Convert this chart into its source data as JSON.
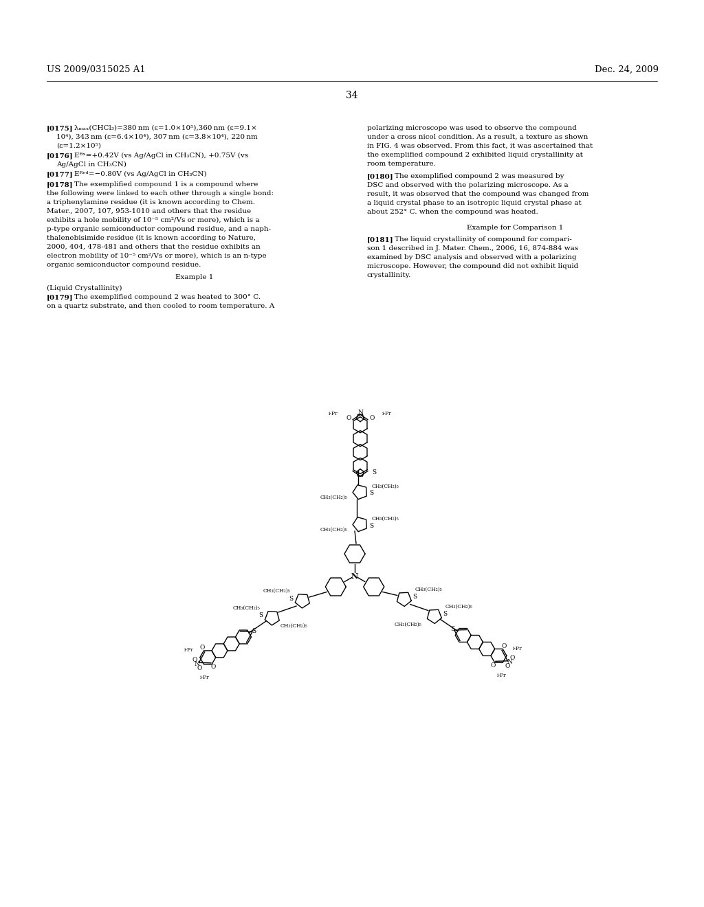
{
  "header_left": "US 2009/0315025 A1",
  "header_right": "Dec. 24, 2009",
  "page_number": "34",
  "bg": "#ffffff",
  "fg": "#000000"
}
